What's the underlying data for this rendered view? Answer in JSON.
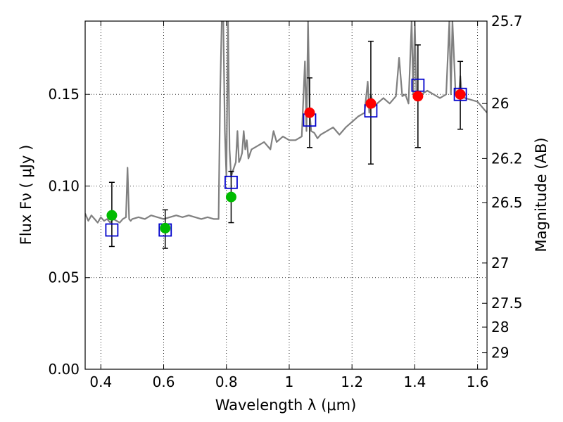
{
  "chart_data": {
    "type": "scatter",
    "xlabel": "Wavelength  λ (μm)",
    "ylabel": "Flux  Fν  ( μJy )",
    "y2label": "Magnitude (AB)",
    "xlim": [
      0.35,
      1.63
    ],
    "ylim": [
      0.0,
      0.19
    ],
    "grid": true,
    "x_ticks": [
      0.4,
      0.6,
      0.8,
      1.0,
      1.2,
      1.4,
      1.6
    ],
    "x_tick_labels": [
      "0.4",
      "0.6",
      "0.8",
      "1",
      "1.2",
      "1.4",
      "1.6"
    ],
    "y_ticks": [
      0.0,
      0.05,
      0.1,
      0.15
    ],
    "y_tick_labels": [
      "0.00",
      "0.05",
      "0.10",
      "0.15"
    ],
    "y2_ticks": [
      {
        "flux": 0.19,
        "label": "25.7"
      },
      {
        "flux": 0.145,
        "label": "26"
      },
      {
        "flux": 0.115,
        "label": "26.2"
      },
      {
        "flux": 0.091,
        "label": "26.5"
      },
      {
        "flux": 0.058,
        "label": "27"
      },
      {
        "flux": 0.036,
        "label": "27.5"
      },
      {
        "flux": 0.023,
        "label": "28"
      },
      {
        "flux": 0.009,
        "label": "29"
      }
    ],
    "colors": {
      "model": "#808080",
      "model_photometry": "#0000cc",
      "observed_green": "#00bb00",
      "observed_red": "#ff0000",
      "errorbar": "#000000"
    },
    "series": [
      {
        "kind": "line",
        "color": "#808080",
        "x": [
          0.35,
          0.36,
          0.37,
          0.38,
          0.39,
          0.4,
          0.41,
          0.42,
          0.43,
          0.44,
          0.45,
          0.46,
          0.47,
          0.48,
          0.485,
          0.49,
          0.495,
          0.5,
          0.52,
          0.54,
          0.56,
          0.58,
          0.6,
          0.62,
          0.64,
          0.66,
          0.68,
          0.7,
          0.72,
          0.74,
          0.76,
          0.775,
          0.78,
          0.785,
          0.79,
          0.795,
          0.8,
          0.805,
          0.81,
          0.815,
          0.82,
          0.83,
          0.835,
          0.84,
          0.845,
          0.85,
          0.855,
          0.86,
          0.865,
          0.87,
          0.88,
          0.9,
          0.92,
          0.94,
          0.95,
          0.96,
          0.98,
          1.0,
          1.02,
          1.04,
          1.05,
          1.055,
          1.06,
          1.065,
          1.07,
          1.08,
          1.09,
          1.1,
          1.12,
          1.14,
          1.16,
          1.18,
          1.2,
          1.22,
          1.24,
          1.25,
          1.255,
          1.26,
          1.27,
          1.28,
          1.3,
          1.32,
          1.34,
          1.35,
          1.36,
          1.37,
          1.38,
          1.39,
          1.395,
          1.4,
          1.405,
          1.41,
          1.42,
          1.44,
          1.46,
          1.48,
          1.5,
          1.51,
          1.515,
          1.52,
          1.53,
          1.54,
          1.545,
          1.55,
          1.56,
          1.58,
          1.6,
          1.62,
          1.63
        ],
        "y": [
          0.085,
          0.081,
          0.084,
          0.082,
          0.08,
          0.083,
          0.081,
          0.082,
          0.08,
          0.082,
          0.081,
          0.08,
          0.082,
          0.083,
          0.11,
          0.082,
          0.081,
          0.082,
          0.083,
          0.082,
          0.084,
          0.083,
          0.082,
          0.083,
          0.084,
          0.083,
          0.084,
          0.083,
          0.082,
          0.083,
          0.082,
          0.082,
          0.15,
          0.19,
          0.19,
          0.13,
          0.105,
          0.19,
          0.12,
          0.105,
          0.108,
          0.113,
          0.13,
          0.113,
          0.115,
          0.118,
          0.13,
          0.12,
          0.125,
          0.115,
          0.12,
          0.122,
          0.124,
          0.12,
          0.13,
          0.124,
          0.127,
          0.125,
          0.125,
          0.127,
          0.168,
          0.13,
          0.19,
          0.14,
          0.13,
          0.129,
          0.126,
          0.128,
          0.13,
          0.132,
          0.128,
          0.132,
          0.135,
          0.138,
          0.14,
          0.157,
          0.14,
          0.15,
          0.143,
          0.145,
          0.148,
          0.145,
          0.149,
          0.17,
          0.149,
          0.15,
          0.145,
          0.19,
          0.15,
          0.19,
          0.152,
          0.148,
          0.15,
          0.152,
          0.15,
          0.148,
          0.15,
          0.19,
          0.15,
          0.19,
          0.15,
          0.149,
          0.16,
          0.149,
          0.148,
          0.147,
          0.146,
          0.142,
          0.14
        ]
      },
      {
        "kind": "square",
        "color": "#0000cc",
        "x": [
          0.435,
          0.605,
          0.815,
          1.065,
          1.26,
          1.41,
          1.545
        ],
        "y": [
          0.076,
          0.076,
          0.102,
          0.136,
          0.141,
          0.155,
          0.15
        ]
      },
      {
        "kind": "circle",
        "color": "#00bb00",
        "x": [
          0.435,
          0.605,
          0.815
        ],
        "y": [
          0.084,
          0.077,
          0.094
        ]
      },
      {
        "kind": "circle",
        "color": "#ff0000",
        "x": [
          1.065,
          1.26,
          1.41,
          1.545
        ],
        "y": [
          0.14,
          0.145,
          0.149,
          0.15
        ]
      }
    ],
    "errorbars": {
      "x": [
        0.435,
        0.605,
        0.815,
        1.065,
        1.26,
        1.41,
        1.545
      ],
      "ylow": [
        0.067,
        0.066,
        0.08,
        0.121,
        0.112,
        0.121,
        0.131
      ],
      "yhigh": [
        0.102,
        0.087,
        0.108,
        0.159,
        0.179,
        0.177,
        0.168
      ]
    }
  }
}
